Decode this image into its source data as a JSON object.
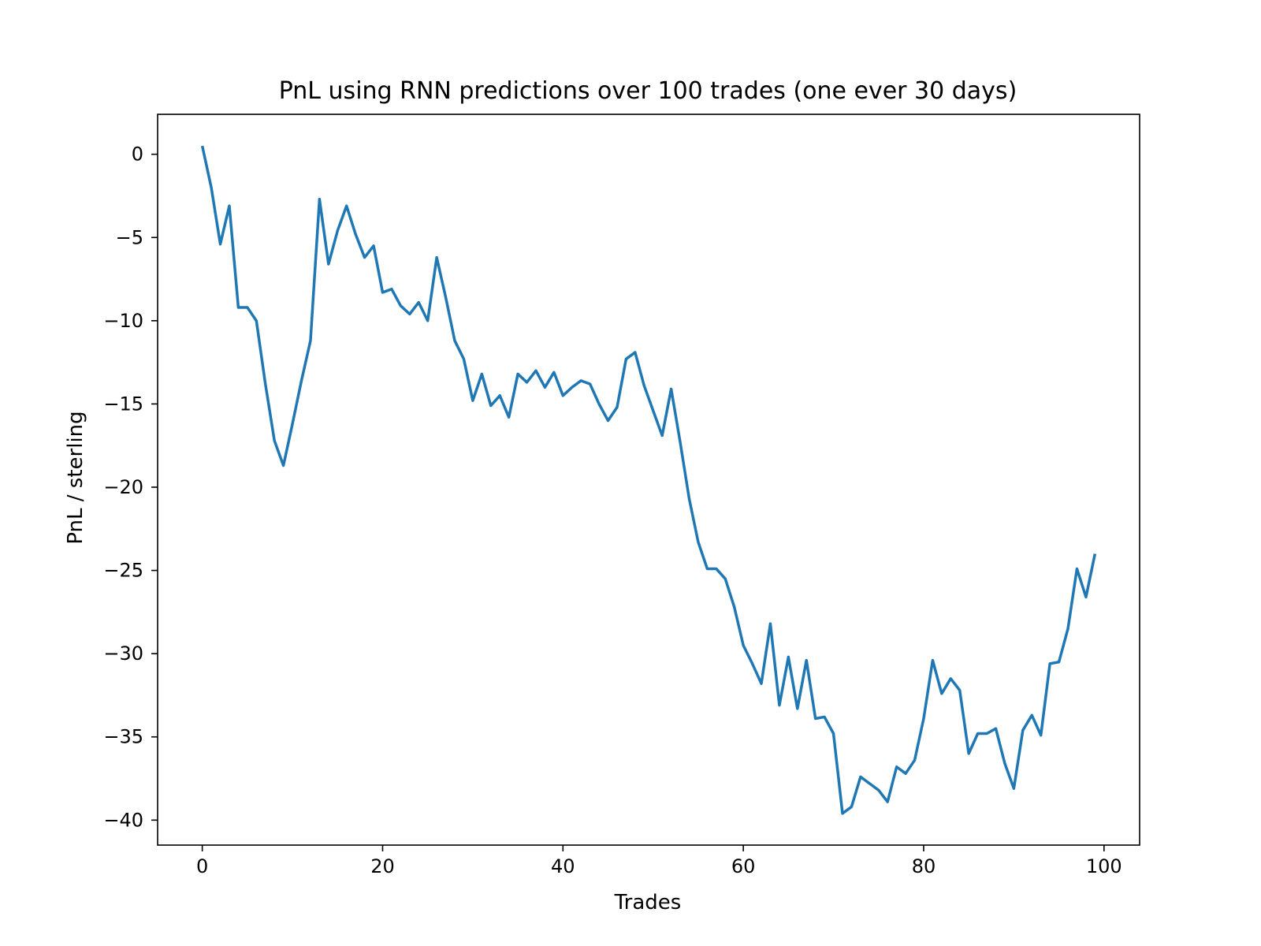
{
  "chart_data": {
    "type": "line",
    "title": "PnL using RNN predictions over 100 trades (one ever 30 days)",
    "xlabel": "Trades",
    "ylabel": "PnL / sterling",
    "xlim": [
      -4.95,
      103.95
    ],
    "ylim": [
      -41.5,
      2.4
    ],
    "xticks": [
      0,
      20,
      40,
      60,
      80,
      100
    ],
    "xtick_labels": [
      "0",
      "20",
      "40",
      "60",
      "80",
      "100"
    ],
    "yticks": [
      0,
      -5,
      -10,
      -15,
      -20,
      -25,
      -30,
      -35,
      -40
    ],
    "ytick_labels": [
      "0",
      "−5",
      "−10",
      "−15",
      "−20",
      "−25",
      "−30",
      "−35",
      "−40"
    ],
    "grid": false,
    "series": [
      {
        "color": "#1f77b4",
        "x": [
          0,
          1,
          2,
          3,
          4,
          5,
          6,
          7,
          8,
          9,
          10,
          11,
          12,
          13,
          14,
          15,
          16,
          17,
          18,
          19,
          20,
          21,
          22,
          23,
          24,
          25,
          26,
          27,
          28,
          29,
          30,
          31,
          32,
          33,
          34,
          35,
          36,
          37,
          38,
          39,
          40,
          41,
          42,
          43,
          44,
          45,
          46,
          47,
          48,
          49,
          50,
          51,
          52,
          53,
          54,
          55,
          56,
          57,
          58,
          59,
          60,
          61,
          62,
          63,
          64,
          65,
          66,
          67,
          68,
          69,
          70,
          71,
          72,
          73,
          74,
          75,
          76,
          77,
          78,
          79,
          80,
          81,
          82,
          83,
          84,
          85,
          86,
          87,
          88,
          89,
          90,
          91,
          92,
          93,
          94,
          95,
          96,
          97,
          98,
          99
        ],
        "y": [
          0.5,
          -2.0,
          -5.4,
          -3.1,
          -9.2,
          -9.2,
          -10.0,
          -13.8,
          -17.2,
          -18.7,
          -16.2,
          -13.6,
          -11.2,
          -2.7,
          -6.6,
          -4.6,
          -3.1,
          -4.8,
          -6.2,
          -5.5,
          -8.3,
          -8.1,
          -9.1,
          -9.6,
          -8.9,
          -10.0,
          -6.2,
          -8.6,
          -11.2,
          -12.3,
          -14.8,
          -13.2,
          -15.1,
          -14.5,
          -15.8,
          -13.2,
          -13.7,
          -13.0,
          -14.0,
          -13.1,
          -14.5,
          -14.0,
          -13.6,
          -13.8,
          -15.0,
          -16.0,
          -15.2,
          -12.3,
          -11.9,
          -13.9,
          -15.4,
          -16.9,
          -14.1,
          -17.3,
          -20.7,
          -23.3,
          -24.9,
          -24.9,
          -25.5,
          -27.2,
          -29.5,
          -30.6,
          -31.8,
          -28.2,
          -33.1,
          -30.2,
          -33.3,
          -30.4,
          -33.9,
          -33.8,
          -34.8,
          -39.6,
          -39.2,
          -37.4,
          -37.8,
          -38.2,
          -38.9,
          -36.8,
          -37.2,
          -36.4,
          -33.9,
          -30.4,
          -32.4,
          -31.5,
          -32.2,
          -36.0,
          -34.8,
          -34.8,
          -34.5,
          -36.6,
          -38.1,
          -34.6,
          -33.7,
          -34.9,
          -30.6,
          -30.5,
          -28.5,
          -24.9,
          -26.6,
          -24.0
        ]
      }
    ]
  }
}
